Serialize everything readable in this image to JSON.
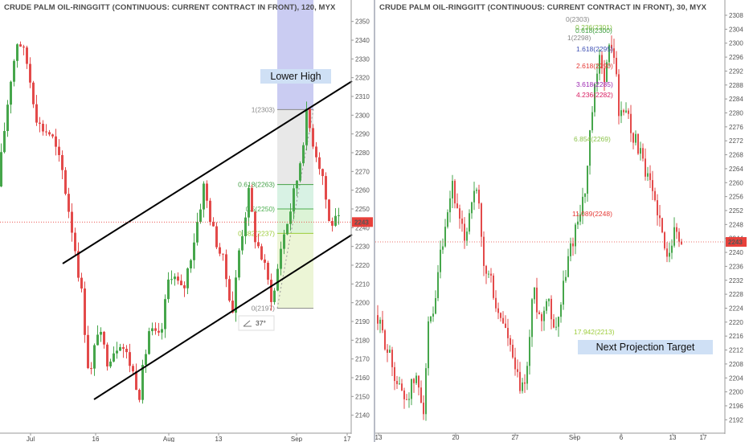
{
  "colors": {
    "up": "#46a64b",
    "down": "#e34a4a",
    "price_tag": "#e8413b",
    "channel": "#000000",
    "callout_bg": "#cfe0f5",
    "fib_236": "#8bc34a",
    "fib_382": "#9ccc3a",
    "fib_5": "#4caf50",
    "fib_618": "#43a047",
    "fib_0": "#888888",
    "fib_1": "#888888",
    "fib_1618": "#3f51b5",
    "fib_2618": "#e53935",
    "fib_3618": "#9c27b0",
    "fib_4236": "#d81b60",
    "fib_6854": "#8bc34a",
    "fib_17942": "#9ccc3a"
  },
  "left": {
    "title": "CRUDE PALM OIL-RINGGITT (CONTINUOUS: CURRENT CONTRACT IN FRONT), 120, MYX",
    "price_label": "2243",
    "callout": "Lower High",
    "angle_label": "37°",
    "fib_levels": [
      {
        "label": "1(2303)",
        "value": 2303,
        "color_key": "fib_1"
      },
      {
        "label": "0.618(2263)",
        "value": 2263,
        "color_key": "fib_618"
      },
      {
        "label": "0.5(2250)",
        "value": 2250,
        "color_key": "fib_5"
      },
      {
        "label": "0.382(2237)",
        "value": 2237,
        "color_key": "fib_382"
      },
      {
        "label": "0(2197)",
        "value": 2197,
        "color_key": "fib_0"
      }
    ]
  },
  "right": {
    "title": "CRUDE PALM OIL-RINGGITT (CONTINUOUS: CURRENT CONTRACT IN FRONT), 30, MYX",
    "price_label": "2243",
    "callout": "Next Projection Target",
    "fib_levels": [
      {
        "label": "0(2303)",
        "value": 2303,
        "color_key": "fib_0"
      },
      {
        "label": "0.236(2301)",
        "value": 2301,
        "color_key": "fib_236"
      },
      {
        "label": "0.618(2300)",
        "value": 2300,
        "color_key": "fib_618"
      },
      {
        "label": "1(2298)",
        "value": 2298,
        "color_key": "fib_1"
      },
      {
        "label": "1.618(2295)",
        "value": 2295,
        "color_key": "fib_1618"
      },
      {
        "label": "2.618(2290)",
        "value": 2290,
        "color_key": "fib_2618"
      },
      {
        "label": "3.618(2285)",
        "value": 2285,
        "color_key": "fib_3618"
      },
      {
        "label": "4.236(2282)",
        "value": 2282,
        "color_key": "fib_4236"
      },
      {
        "label": "6.854(2269)",
        "value": 2269,
        "color_key": "fib_6854"
      },
      {
        "label": "11.089(2248)",
        "value": 2248,
        "color_key": "fib_2618"
      },
      {
        "label": "17.942(2213)",
        "value": 2213,
        "color_key": "fib_17942"
      }
    ]
  },
  "chart_data": [
    {
      "type": "candlestick",
      "title": "CRUDE PALM OIL-RINGGITT (CONTINUOUS: CURRENT CONTRACT IN FRONT), 120, MYX",
      "ylim": [
        2130,
        2355
      ],
      "y_ticks": [
        2130,
        2140,
        2150,
        2160,
        2170,
        2180,
        2190,
        2200,
        2210,
        2220,
        2230,
        2240,
        2250,
        2260,
        2270,
        2280,
        2290,
        2300,
        2310,
        2320,
        2330,
        2340,
        2350
      ],
      "x_tick_labels": [
        "Jul",
        "16",
        "Aug",
        "13",
        "Sep",
        "17"
      ],
      "last_price": 2243,
      "anchors": [
        {
          "x": 0,
          "y": 2262
        },
        {
          "x": 10,
          "y": 2300
        },
        {
          "x": 16,
          "y": 2320
        },
        {
          "x": 25,
          "y": 2342
        },
        {
          "x": 36,
          "y": 2328
        },
        {
          "x": 50,
          "y": 2295
        },
        {
          "x": 66,
          "y": 2290
        },
        {
          "x": 80,
          "y": 2270
        },
        {
          "x": 95,
          "y": 2232
        },
        {
          "x": 104,
          "y": 2205
        },
        {
          "x": 114,
          "y": 2158
        },
        {
          "x": 124,
          "y": 2186
        },
        {
          "x": 136,
          "y": 2170
        },
        {
          "x": 152,
          "y": 2180
        },
        {
          "x": 164,
          "y": 2168
        },
        {
          "x": 176,
          "y": 2152
        },
        {
          "x": 188,
          "y": 2185
        },
        {
          "x": 202,
          "y": 2180
        },
        {
          "x": 214,
          "y": 2218
        },
        {
          "x": 230,
          "y": 2205
        },
        {
          "x": 244,
          "y": 2234
        },
        {
          "x": 256,
          "y": 2262
        },
        {
          "x": 268,
          "y": 2238
        },
        {
          "x": 280,
          "y": 2222
        },
        {
          "x": 292,
          "y": 2196
        },
        {
          "x": 300,
          "y": 2228
        },
        {
          "x": 312,
          "y": 2258
        },
        {
          "x": 320,
          "y": 2235
        },
        {
          "x": 330,
          "y": 2222
        },
        {
          "x": 342,
          "y": 2200
        },
        {
          "x": 352,
          "y": 2230
        },
        {
          "x": 364,
          "y": 2250
        },
        {
          "x": 374,
          "y": 2270
        },
        {
          "x": 384,
          "y": 2300
        },
        {
          "x": 394,
          "y": 2283
        },
        {
          "x": 404,
          "y": 2268
        },
        {
          "x": 412,
          "y": 2243
        },
        {
          "x": 420,
          "y": 2243
        }
      ],
      "fibonacci_retracement": [
        {
          "level": 1,
          "value": 2303
        },
        {
          "level": 0.618,
          "value": 2263
        },
        {
          "level": 0.5,
          "value": 2250
        },
        {
          "level": 0.382,
          "value": 2237
        },
        {
          "level": 0,
          "value": 2197
        }
      ],
      "annotations": [
        "Lower High",
        "37°"
      ]
    },
    {
      "type": "candlestick",
      "title": "CRUDE PALM OIL-RINGGITT (CONTINUOUS: CURRENT CONTRACT IN FRONT), 30, MYX",
      "ylim": [
        2188,
        2310
      ],
      "y_ticks": [
        2188,
        2192,
        2196,
        2200,
        2204,
        2208,
        2212,
        2216,
        2220,
        2224,
        2228,
        2232,
        2236,
        2240,
        2244,
        2248,
        2252,
        2256,
        2260,
        2264,
        2268,
        2272,
        2276,
        2280,
        2284,
        2288,
        2292,
        2296,
        2300,
        2304,
        2308
      ],
      "x_tick_labels": [
        "13",
        "20",
        "27",
        "Sep",
        "6",
        "13",
        "17"
      ],
      "last_price": 2243,
      "anchors": [
        {
          "x": 0,
          "y": 2222
        },
        {
          "x": 10,
          "y": 2216
        },
        {
          "x": 18,
          "y": 2210
        },
        {
          "x": 28,
          "y": 2202
        },
        {
          "x": 38,
          "y": 2198
        },
        {
          "x": 50,
          "y": 2204
        },
        {
          "x": 60,
          "y": 2196
        },
        {
          "x": 66,
          "y": 2218
        },
        {
          "x": 74,
          "y": 2222
        },
        {
          "x": 80,
          "y": 2238
        },
        {
          "x": 88,
          "y": 2246
        },
        {
          "x": 96,
          "y": 2260
        },
        {
          "x": 104,
          "y": 2248
        },
        {
          "x": 112,
          "y": 2244
        },
        {
          "x": 120,
          "y": 2256
        },
        {
          "x": 128,
          "y": 2256
        },
        {
          "x": 134,
          "y": 2236
        },
        {
          "x": 144,
          "y": 2232
        },
        {
          "x": 152,
          "y": 2222
        },
        {
          "x": 160,
          "y": 2220
        },
        {
          "x": 168,
          "y": 2212
        },
        {
          "x": 176,
          "y": 2204
        },
        {
          "x": 182,
          "y": 2200
        },
        {
          "x": 190,
          "y": 2208
        },
        {
          "x": 196,
          "y": 2230
        },
        {
          "x": 202,
          "y": 2224
        },
        {
          "x": 208,
          "y": 2220
        },
        {
          "x": 214,
          "y": 2230
        },
        {
          "x": 222,
          "y": 2218
        },
        {
          "x": 230,
          "y": 2224
        },
        {
          "x": 238,
          "y": 2236
        },
        {
          "x": 246,
          "y": 2244
        },
        {
          "x": 254,
          "y": 2252
        },
        {
          "x": 262,
          "y": 2258
        },
        {
          "x": 268,
          "y": 2276
        },
        {
          "x": 274,
          "y": 2288
        },
        {
          "x": 280,
          "y": 2296
        },
        {
          "x": 286,
          "y": 2290
        },
        {
          "x": 292,
          "y": 2300
        },
        {
          "x": 298,
          "y": 2296
        },
        {
          "x": 304,
          "y": 2278
        },
        {
          "x": 312,
          "y": 2282
        },
        {
          "x": 320,
          "y": 2274
        },
        {
          "x": 328,
          "y": 2270
        },
        {
          "x": 336,
          "y": 2262
        },
        {
          "x": 344,
          "y": 2258
        },
        {
          "x": 352,
          "y": 2252
        },
        {
          "x": 360,
          "y": 2240
        },
        {
          "x": 368,
          "y": 2243
        },
        {
          "x": 374,
          "y": 2247
        },
        {
          "x": 378,
          "y": 2243
        }
      ],
      "fibonacci_extension": [
        {
          "level": 0,
          "value": 2303
        },
        {
          "level": 0.236,
          "value": 2301
        },
        {
          "level": 0.618,
          "value": 2300
        },
        {
          "level": 1,
          "value": 2298
        },
        {
          "level": 1.618,
          "value": 2295
        },
        {
          "level": 2.618,
          "value": 2290
        },
        {
          "level": 3.618,
          "value": 2285
        },
        {
          "level": 4.236,
          "value": 2282
        },
        {
          "level": 6.854,
          "value": 2269
        },
        {
          "level": 11.089,
          "value": 2248
        },
        {
          "level": 17.942,
          "value": 2213
        }
      ],
      "annotations": [
        "Next Projection Target"
      ]
    }
  ]
}
